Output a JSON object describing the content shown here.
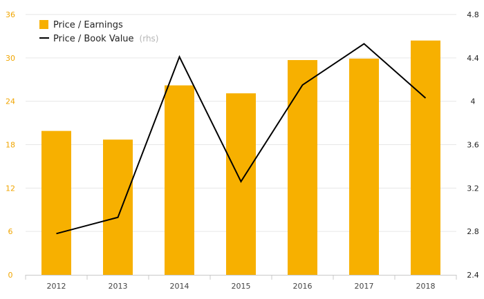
{
  "chart_data": {
    "type": "bar",
    "categories": [
      "2012",
      "2013",
      "2014",
      "2015",
      "2016",
      "2017",
      "2018"
    ],
    "series": [
      {
        "name": "Price / Earnings",
        "type": "bar",
        "axis": "left",
        "color": "#f7b000",
        "values": [
          19.9,
          18.7,
          26.2,
          25.1,
          29.7,
          29.9,
          32.4
        ]
      },
      {
        "name": "Price / Book Value",
        "name_suffix": "(rhs)",
        "type": "line",
        "axis": "right",
        "color": "#000000",
        "values": [
          2.78,
          2.93,
          4.41,
          3.26,
          4.15,
          4.53,
          4.03
        ]
      }
    ],
    "y_left": {
      "range": [
        0,
        36
      ],
      "ticks": [
        "0",
        "6",
        "12",
        "18",
        "24",
        "30",
        "36"
      ],
      "color": "#f0a500"
    },
    "y_right": {
      "range": [
        2.4,
        4.8
      ],
      "ticks": [
        "2.4",
        "2.8",
        "3.2",
        "3.6",
        "4",
        "4.4",
        "4.8"
      ]
    },
    "grid": true,
    "legend_position": "top-left"
  }
}
